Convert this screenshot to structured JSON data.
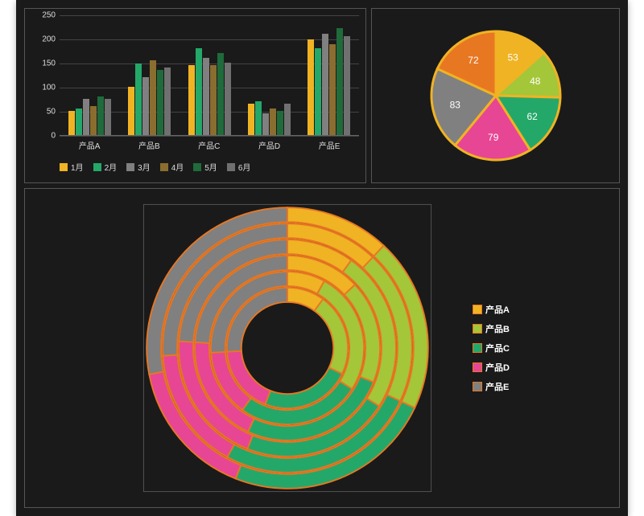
{
  "theme": {
    "background": "#1a1a1a",
    "panel_border": "#555555",
    "grid_color": "#444444",
    "text_color": "#dddddd"
  },
  "bar_chart": {
    "type": "bar",
    "categories": [
      "产品A",
      "产品B",
      "产品C",
      "产品D",
      "产品E"
    ],
    "series": [
      {
        "name": "1月",
        "color": "#f0b323",
        "values": [
          50,
          100,
          145,
          65,
          198
        ]
      },
      {
        "name": "2月",
        "color": "#24a869",
        "values": [
          55,
          148,
          180,
          70,
          180
        ]
      },
      {
        "name": "3月",
        "color": "#808080",
        "values": [
          75,
          120,
          160,
          45,
          210
        ]
      },
      {
        "name": "4月",
        "color": "#8a6d2f",
        "values": [
          60,
          155,
          145,
          55,
          188
        ]
      },
      {
        "name": "5月",
        "color": "#1f6b3b",
        "values": [
          80,
          135,
          170,
          50,
          222
        ]
      },
      {
        "name": "6月",
        "color": "#707070",
        "values": [
          75,
          140,
          150,
          65,
          205
        ]
      }
    ],
    "ylim": [
      0,
      250
    ],
    "ytick_step": 50,
    "label_fontsize": 10
  },
  "pie_chart": {
    "type": "pie",
    "outline_color": "#f0b323",
    "outline_width": 3,
    "label_fontsize": 12,
    "slices": [
      {
        "value": 53,
        "color": "#f0b323",
        "label": "53"
      },
      {
        "value": 48,
        "color": "#a4c639",
        "label": "48"
      },
      {
        "value": 62,
        "color": "#24a869",
        "label": "62"
      },
      {
        "value": 79,
        "color": "#e74694",
        "label": "79"
      },
      {
        "value": 83,
        "color": "#808080",
        "label": "83"
      },
      {
        "value": 72,
        "color": "#e87722",
        "label": "72"
      }
    ]
  },
  "donut_chart": {
    "type": "nested-donut",
    "inner_radius_ratio": 0.32,
    "ring_gap": 2,
    "outline_color": "#e87722",
    "legend": [
      {
        "name": "产品A",
        "color": "#f0b323"
      },
      {
        "name": "产品B",
        "color": "#a4c639"
      },
      {
        "name": "产品C",
        "color": "#24a869"
      },
      {
        "name": "产品D",
        "color": "#e74694"
      },
      {
        "name": "产品E",
        "color": "#808080"
      }
    ],
    "rings": [
      {
        "segments": [
          {
            "color": "#f0b323",
            "fraction": 0.1
          },
          {
            "color": "#a4c639",
            "fraction": 0.22
          },
          {
            "color": "#24a869",
            "fraction": 0.24
          },
          {
            "color": "#e74694",
            "fraction": 0.18
          },
          {
            "color": "#808080",
            "fraction": 0.26
          }
        ]
      },
      {
        "segments": [
          {
            "color": "#f0b323",
            "fraction": 0.08
          },
          {
            "color": "#a4c639",
            "fraction": 0.26
          },
          {
            "color": "#24a869",
            "fraction": 0.26
          },
          {
            "color": "#e74694",
            "fraction": 0.14
          },
          {
            "color": "#808080",
            "fraction": 0.26
          }
        ]
      },
      {
        "segments": [
          {
            "color": "#f0b323",
            "fraction": 0.13
          },
          {
            "color": "#a4c639",
            "fraction": 0.18
          },
          {
            "color": "#24a869",
            "fraction": 0.26
          },
          {
            "color": "#e74694",
            "fraction": 0.19
          },
          {
            "color": "#808080",
            "fraction": 0.24
          }
        ]
      },
      {
        "segments": [
          {
            "color": "#f0b323",
            "fraction": 0.1
          },
          {
            "color": "#a4c639",
            "fraction": 0.24
          },
          {
            "color": "#24a869",
            "fraction": 0.22
          },
          {
            "color": "#e74694",
            "fraction": 0.2
          },
          {
            "color": "#808080",
            "fraction": 0.24
          }
        ]
      },
      {
        "segments": [
          {
            "color": "#f0b323",
            "fraction": 0.12
          },
          {
            "color": "#a4c639",
            "fraction": 0.2
          },
          {
            "color": "#24a869",
            "fraction": 0.26
          },
          {
            "color": "#e74694",
            "fraction": 0.16
          },
          {
            "color": "#808080",
            "fraction": 0.26
          }
        ]
      },
      {
        "segments": [
          {
            "color": "#f0b323",
            "fraction": 0.12
          },
          {
            "color": "#a4c639",
            "fraction": 0.2
          },
          {
            "color": "#24a869",
            "fraction": 0.24
          },
          {
            "color": "#e74694",
            "fraction": 0.16
          },
          {
            "color": "#808080",
            "fraction": 0.28
          }
        ]
      }
    ]
  }
}
